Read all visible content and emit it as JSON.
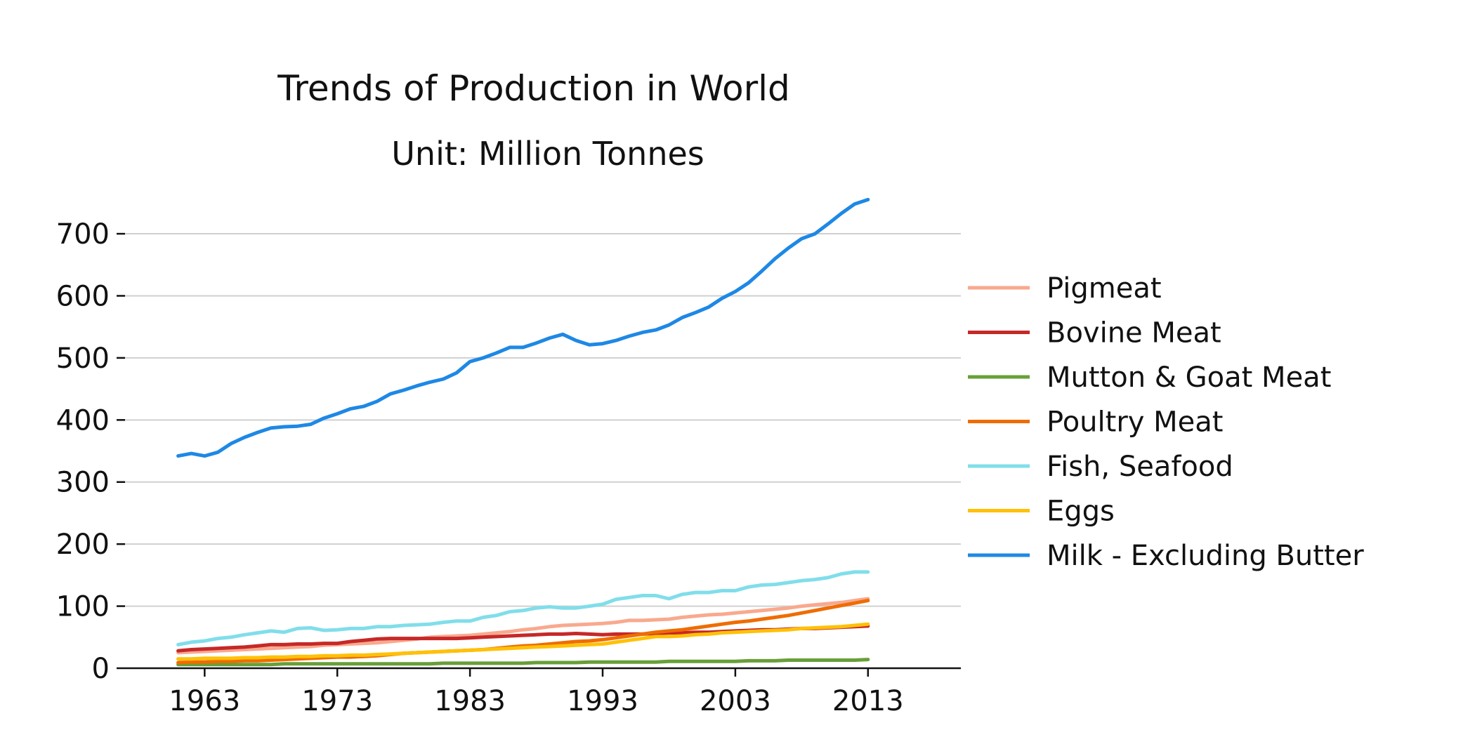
{
  "chart_data": {
    "type": "line",
    "title": "Trends of Production in World",
    "subtitle": "Unit: Million Tonnes",
    "xlabel": "",
    "ylabel": "",
    "xlim": [
      1957,
      2020
    ],
    "ylim": [
      0,
      760
    ],
    "xticks": [
      1963,
      1973,
      1983,
      1993,
      2003,
      2013
    ],
    "yticks": [
      0,
      100,
      200,
      300,
      400,
      500,
      600,
      700
    ],
    "grid": "horizontal",
    "legend_position": "right",
    "x": [
      1961,
      1962,
      1963,
      1964,
      1965,
      1966,
      1967,
      1968,
      1969,
      1970,
      1971,
      1972,
      1973,
      1974,
      1975,
      1976,
      1977,
      1978,
      1979,
      1980,
      1981,
      1982,
      1983,
      1984,
      1985,
      1986,
      1987,
      1988,
      1989,
      1990,
      1991,
      1992,
      1993,
      1994,
      1995,
      1996,
      1997,
      1998,
      1999,
      2000,
      2001,
      2002,
      2003,
      2004,
      2005,
      2006,
      2007,
      2008,
      2009,
      2010,
      2011,
      2012,
      2013
    ],
    "series": [
      {
        "name": "Pigmeat",
        "color": "#f9a98e",
        "values": [
          25,
          26,
          27,
          28,
          29,
          30,
          31,
          32,
          33,
          34,
          35,
          37,
          38,
          39,
          40,
          41,
          43,
          45,
          47,
          50,
          51,
          52,
          53,
          55,
          57,
          59,
          62,
          64,
          67,
          69,
          70,
          71,
          72,
          74,
          77,
          77,
          78,
          79,
          82,
          84,
          86,
          87,
          89,
          91,
          93,
          95,
          97,
          100,
          102,
          104,
          106,
          109,
          112
        ]
      },
      {
        "name": "Bovine Meat",
        "color": "#c62828",
        "values": [
          28,
          30,
          31,
          32,
          33,
          34,
          36,
          38,
          38,
          39,
          39,
          40,
          40,
          43,
          45,
          47,
          48,
          48,
          48,
          48,
          48,
          48,
          49,
          50,
          51,
          52,
          53,
          54,
          55,
          55,
          56,
          55,
          54,
          55,
          55,
          55,
          56,
          57,
          57,
          58,
          58,
          59,
          60,
          61,
          62,
          62,
          63,
          64,
          64,
          65,
          66,
          67,
          68
        ]
      },
      {
        "name": "Mutton & Goat Meat",
        "color": "#689f38",
        "values": [
          6,
          6,
          6,
          6,
          6,
          6,
          6,
          6,
          7,
          7,
          7,
          7,
          7,
          7,
          7,
          7,
          7,
          7,
          7,
          7,
          8,
          8,
          8,
          8,
          8,
          8,
          8,
          9,
          9,
          9,
          9,
          10,
          10,
          10,
          10,
          10,
          10,
          11,
          11,
          11,
          11,
          11,
          11,
          12,
          12,
          12,
          13,
          13,
          13,
          13,
          13,
          13,
          14
        ]
      },
      {
        "name": "Poultry Meat",
        "color": "#ef6c00",
        "values": [
          9,
          10,
          10,
          11,
          11,
          12,
          12,
          13,
          14,
          15,
          16,
          17,
          18,
          18,
          19,
          20,
          22,
          24,
          25,
          26,
          27,
          28,
          29,
          30,
          32,
          34,
          36,
          37,
          39,
          41,
          43,
          44,
          46,
          49,
          52,
          55,
          58,
          60,
          62,
          65,
          68,
          71,
          74,
          76,
          79,
          82,
          85,
          89,
          93,
          97,
          101,
          105,
          109
        ]
      },
      {
        "name": "Fish, Seafood",
        "color": "#80deea",
        "values": [
          38,
          42,
          44,
          48,
          50,
          54,
          57,
          60,
          58,
          64,
          65,
          61,
          62,
          64,
          64,
          67,
          67,
          69,
          70,
          71,
          74,
          76,
          76,
          82,
          85,
          91,
          93,
          97,
          99,
          97,
          97,
          100,
          103,
          111,
          114,
          117,
          117,
          112,
          119,
          122,
          122,
          125,
          125,
          131,
          134,
          135,
          138,
          141,
          143,
          146,
          152,
          155,
          155
        ]
      },
      {
        "name": "Eggs",
        "color": "#ffc107",
        "values": [
          15,
          15,
          16,
          16,
          16,
          17,
          17,
          18,
          18,
          19,
          19,
          20,
          20,
          21,
          21,
          22,
          23,
          24,
          25,
          26,
          27,
          28,
          29,
          30,
          31,
          32,
          33,
          34,
          35,
          36,
          37,
          38,
          39,
          42,
          45,
          48,
          51,
          51,
          52,
          54,
          55,
          57,
          58,
          59,
          60,
          61,
          62,
          64,
          65,
          66,
          67,
          69,
          71
        ]
      },
      {
        "name": "Milk - Excluding Butter",
        "color": "#1e88e5",
        "values": [
          342,
          346,
          342,
          348,
          362,
          372,
          380,
          387,
          389,
          390,
          393,
          403,
          410,
          418,
          422,
          430,
          442,
          448,
          455,
          461,
          466,
          476,
          494,
          500,
          508,
          517,
          517,
          524,
          532,
          538,
          528,
          521,
          523,
          528,
          535,
          541,
          545,
          553,
          565,
          573,
          582,
          596,
          607,
          621,
          640,
          660,
          677,
          692,
          700,
          716,
          733,
          748,
          755
        ]
      }
    ]
  }
}
